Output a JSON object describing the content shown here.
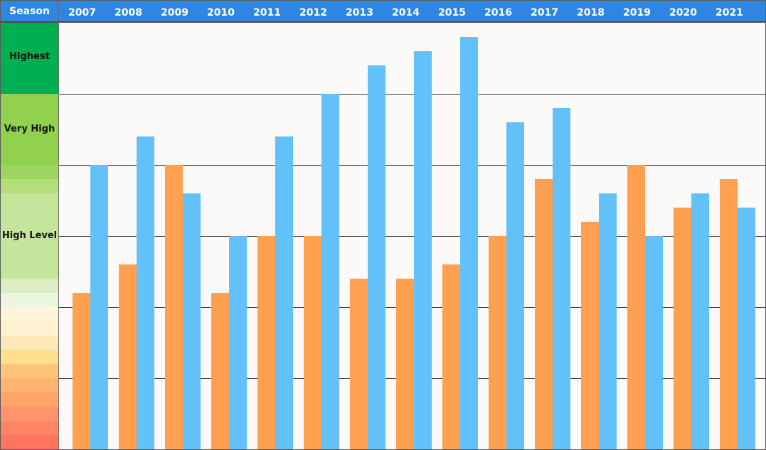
{
  "header": {
    "season_label": "Season",
    "background_color": "#2e86e0",
    "text_color": "#ffffff"
  },
  "scale_labels": {
    "highest": "Highest",
    "very_high": "Very High",
    "high_level": "High Level"
  },
  "scale_colors": [
    "#00b050",
    "#92d050",
    "#92d050",
    "#9ed55e",
    "#b3de7a",
    "#c4e69a",
    "#c4e69a",
    "#c4e69a",
    "#c4e69a",
    "#c4e69a",
    "#c4e69a",
    "#dcefc4",
    "#ebf5e0",
    "#fff3d9",
    "#fff0d0",
    "#ffe8b8",
    "#ffe08e",
    "#ffc478",
    "#ffb473",
    "#ffa468",
    "#ff946a",
    "#ff8565",
    "#ff7560",
    "#ff6655"
  ],
  "chart_data": {
    "type": "bar",
    "categories": [
      "2007",
      "2008",
      "2009",
      "2010",
      "2011",
      "2012",
      "2013",
      "2014",
      "2015",
      "2016",
      "2017",
      "2018",
      "2019",
      "2020",
      "2021"
    ],
    "series": [
      {
        "color": "#ff9f50",
        "values": [
          11,
          13,
          20,
          11,
          15,
          15,
          12,
          12,
          13,
          15,
          19,
          16,
          20,
          17,
          19
        ]
      },
      {
        "color": "#63c1f9",
        "values": [
          20,
          22,
          18,
          15,
          22,
          25,
          27,
          28,
          29,
          23,
          24,
          18,
          15,
          18,
          17
        ]
      }
    ],
    "ylim": [
      0,
      30
    ],
    "grid": true,
    "gridline_values": [
      5,
      10,
      15,
      20,
      25
    ]
  }
}
